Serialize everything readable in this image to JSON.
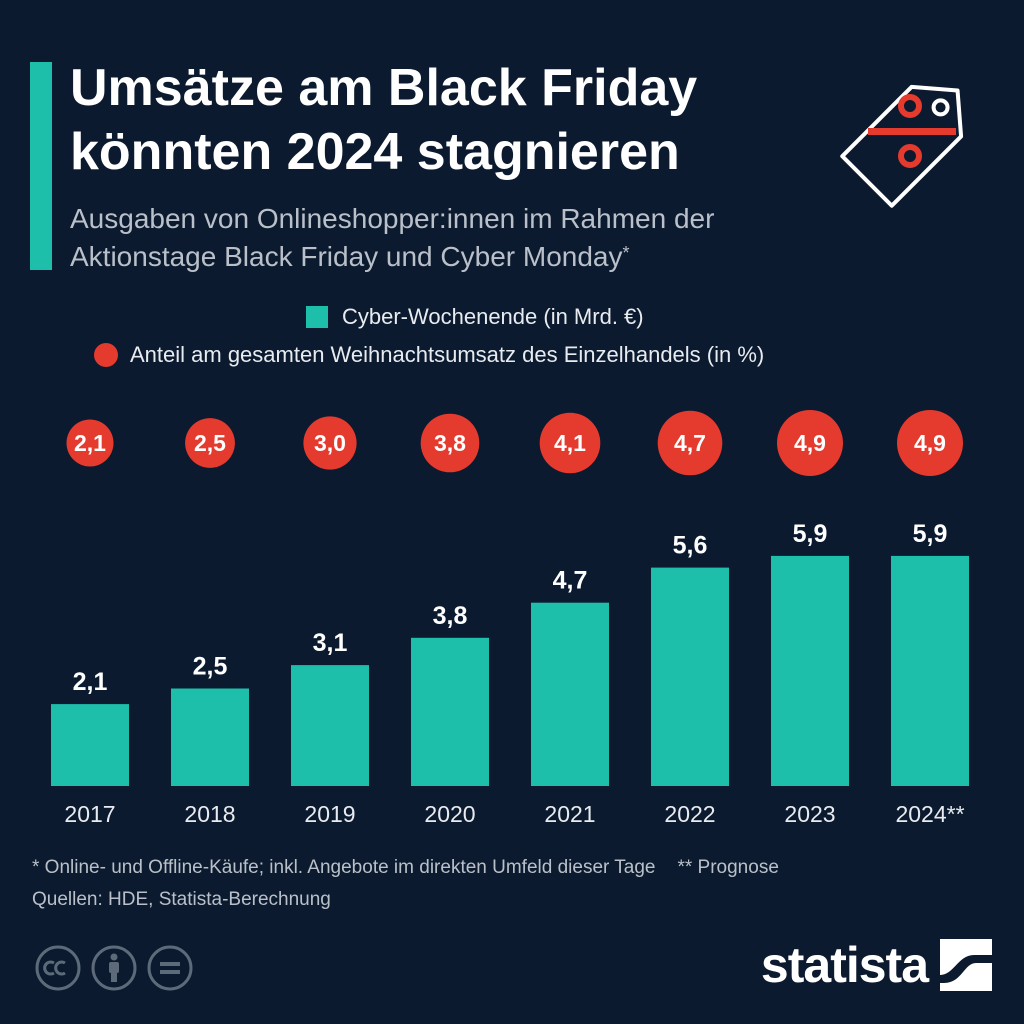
{
  "header": {
    "title": "Umsätze am Black Friday könnten 2024 stagnieren",
    "subtitle": "Ausgaben von Onlineshopper:innen im Rahmen der Aktionstage Black Friday und Cyber Monday",
    "subtitle_mark": "*"
  },
  "legend": {
    "bars_label": "Cyber-Wochenende (in Mrd. €)",
    "dots_label": "Anteil am gesamten Weihnachtsumsatz des Einzelhandels (in %)"
  },
  "colors": {
    "background": "#0b1a2e",
    "bar": "#1dbfaa",
    "dot": "#e53a2e",
    "text": "#ffffff",
    "muted": "#b9c0c9"
  },
  "icons": [
    "price-tag-percent-icon",
    "cc-icon",
    "attribution-icon",
    "no-derivatives-icon",
    "statista-logo-icon"
  ],
  "chart_data": {
    "type": "bar",
    "categories": [
      "2017",
      "2018",
      "2019",
      "2020",
      "2021",
      "2022",
      "2023",
      "2024**"
    ],
    "series": [
      {
        "name": "Cyber-Wochenende (in Mrd. €)",
        "values": [
          2.1,
          2.5,
          3.1,
          3.8,
          4.7,
          5.6,
          5.9,
          5.9
        ],
        "labels": [
          "2,1",
          "2,5",
          "3,1",
          "3,8",
          "4,7",
          "5,6",
          "5,9",
          "5,9"
        ]
      },
      {
        "name": "Anteil am gesamten Weihnachtsumsatz des Einzelhandels (in %)",
        "values": [
          2.1,
          2.5,
          3.0,
          3.8,
          4.1,
          4.7,
          4.9,
          4.9
        ],
        "labels": [
          "2,1",
          "2,5",
          "3,0",
          "3,8",
          "4,1",
          "4,7",
          "4,9",
          "4,9"
        ]
      }
    ],
    "ylim": [
      0,
      6.5
    ],
    "grid": false,
    "legend_position": "top"
  },
  "footer": {
    "note_1": "* Online- und Offline-Käufe; inkl. Angebote im direkten Umfeld dieser Tage",
    "note_2": "** Prognose",
    "sources": "Quellen: HDE, Statista-Berechnung",
    "brand": "statista"
  }
}
